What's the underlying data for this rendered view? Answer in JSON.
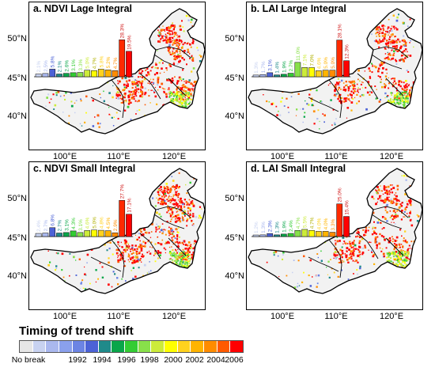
{
  "panels": [
    {
      "title": "a. NDVI Lage Integral",
      "bars": [
        2.1,
        2.5,
        5.8,
        2.1,
        2.6,
        3.1,
        3.3,
        5.0,
        4.7,
        5.8,
        5.2,
        4.7,
        28.3,
        19.5
      ]
    },
    {
      "title": "b. LAI Large Integral",
      "bars": [
        1.3,
        1.7,
        3.1,
        1.4,
        1.9,
        2.7,
        11.0,
        7.1,
        7.0,
        4.6,
        5.0,
        5.0,
        28.1,
        12.3
      ]
    },
    {
      "title": "c. NDVI Small Integral",
      "bars": [
        2.4,
        2.7,
        6.8,
        2.7,
        3.1,
        4.3,
        3.1,
        4.6,
        5.0,
        4.8,
        4.5,
        2.9,
        27.7,
        17.1
      ]
    },
    {
      "title": "d. LAI Small Integral",
      "bars": [
        1.2,
        1.3,
        2.3,
        1.3,
        1.9,
        2.4,
        4.7,
        5.5,
        4.7,
        4.0,
        4.0,
        3.3,
        25.0,
        15.4
      ]
    }
  ],
  "axes": {
    "y_ticks": [
      "50°N",
      "45°N",
      "40°N"
    ],
    "x_ticks": [
      "100°E",
      "110°E",
      "120°E"
    ]
  },
  "legend": {
    "title": "Timing of trend shift",
    "labels": [
      "No break",
      "1992",
      "1994",
      "1996",
      "1998",
      "2000",
      "2002",
      "2004",
      "2006"
    ],
    "colors": [
      "#e6e6e6",
      "#c8d2f0",
      "#aab8ee",
      "#8aa0ec",
      "#6c84e4",
      "#4c62d6",
      "#1f8a8a",
      "#0aa64a",
      "#33cc33",
      "#88e04a",
      "#cceb3a",
      "#ffff00",
      "#ffd21e",
      "#ffb400",
      "#ff8c00",
      "#ff5a00",
      "#ff0000"
    ]
  },
  "bar_colors": [
    "#c8d2f0",
    "#aab8ee",
    "#4c62d6",
    "#1f8a8a",
    "#0aa64a",
    "#33cc33",
    "#88e04a",
    "#cceb3a",
    "#ffff00",
    "#ffd21e",
    "#ffb400",
    "#ff8c00",
    "#ff2a00",
    "#ff0000"
  ]
}
